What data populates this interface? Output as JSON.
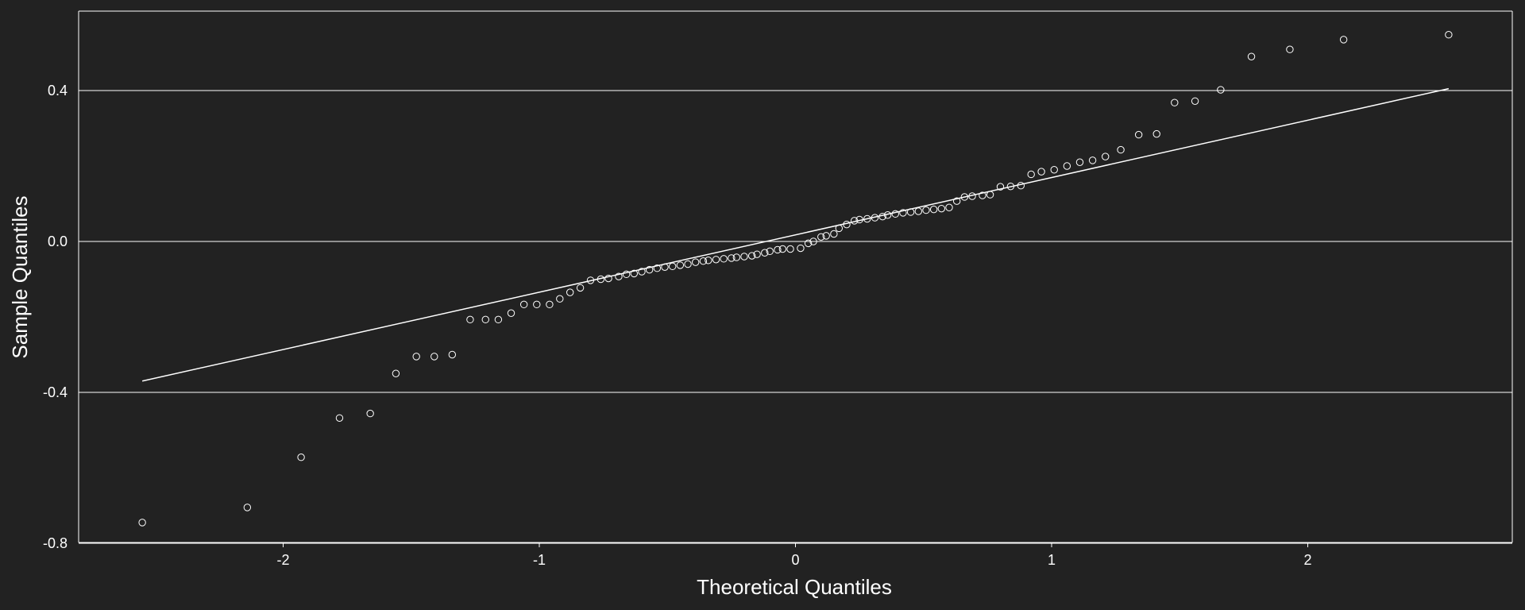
{
  "chart_data": {
    "type": "scatter",
    "xlabel": "Theoretical Quantiles",
    "ylabel": "Sample Quantiles",
    "xlim": [
      -2.8,
      2.8
    ],
    "ylim": [
      -0.8,
      0.61
    ],
    "x_ticks": [
      -2,
      -1,
      0,
      1,
      2
    ],
    "x_tick_labels": [
      "-2",
      "-1",
      "0",
      "1",
      "2"
    ],
    "y_ticks": [
      0.4,
      0.0,
      -0.4,
      -0.8
    ],
    "y_tick_labels": [
      "0.4",
      "0.0",
      "-0.4",
      "-0.8"
    ],
    "grid": "horizontal",
    "colors": {
      "background": "#222222",
      "foreground": "#ffffff"
    },
    "reference_line": {
      "x": [
        -2.55,
        2.55
      ],
      "y": [
        -0.37,
        0.405
      ]
    },
    "series": [
      {
        "points": [
          [
            -2.55,
            -0.745
          ],
          [
            -2.14,
            -0.705
          ],
          [
            -1.93,
            -0.572
          ],
          [
            -1.78,
            -0.468
          ],
          [
            -1.66,
            -0.456
          ],
          [
            -1.56,
            -0.35
          ],
          [
            -1.48,
            -0.305
          ],
          [
            -1.41,
            -0.305
          ],
          [
            -1.34,
            -0.3
          ],
          [
            -1.27,
            -0.207
          ],
          [
            -1.21,
            -0.207
          ],
          [
            -1.16,
            -0.207
          ],
          [
            -1.11,
            -0.19
          ],
          [
            -1.06,
            -0.167
          ],
          [
            -1.01,
            -0.167
          ],
          [
            -0.96,
            -0.167
          ],
          [
            -0.92,
            -0.152
          ],
          [
            -0.88,
            -0.135
          ],
          [
            -0.84,
            -0.123
          ],
          [
            -0.8,
            -0.103
          ],
          [
            -0.76,
            -0.1
          ],
          [
            -0.73,
            -0.098
          ],
          [
            -0.69,
            -0.093
          ],
          [
            -0.66,
            -0.087
          ],
          [
            -0.63,
            -0.085
          ],
          [
            -0.6,
            -0.08
          ],
          [
            -0.57,
            -0.075
          ],
          [
            -0.54,
            -0.071
          ],
          [
            -0.51,
            -0.068
          ],
          [
            -0.48,
            -0.066
          ],
          [
            -0.45,
            -0.063
          ],
          [
            -0.42,
            -0.06
          ],
          [
            -0.39,
            -0.055
          ],
          [
            -0.36,
            -0.052
          ],
          [
            -0.34,
            -0.05
          ],
          [
            -0.31,
            -0.048
          ],
          [
            -0.28,
            -0.046
          ],
          [
            -0.25,
            -0.044
          ],
          [
            -0.23,
            -0.042
          ],
          [
            -0.2,
            -0.04
          ],
          [
            -0.17,
            -0.038
          ],
          [
            -0.15,
            -0.034
          ],
          [
            -0.12,
            -0.03
          ],
          [
            -0.1,
            -0.026
          ],
          [
            -0.07,
            -0.022
          ],
          [
            -0.05,
            -0.02
          ],
          [
            -0.02,
            -0.02
          ],
          [
            0.02,
            -0.018
          ],
          [
            0.05,
            -0.005
          ],
          [
            0.07,
            0.0
          ],
          [
            0.1,
            0.012
          ],
          [
            0.12,
            0.015
          ],
          [
            0.15,
            0.02
          ],
          [
            0.17,
            0.035
          ],
          [
            0.2,
            0.045
          ],
          [
            0.23,
            0.055
          ],
          [
            0.25,
            0.058
          ],
          [
            0.28,
            0.06
          ],
          [
            0.31,
            0.063
          ],
          [
            0.34,
            0.066
          ],
          [
            0.36,
            0.07
          ],
          [
            0.39,
            0.073
          ],
          [
            0.42,
            0.076
          ],
          [
            0.45,
            0.078
          ],
          [
            0.48,
            0.08
          ],
          [
            0.51,
            0.083
          ],
          [
            0.54,
            0.085
          ],
          [
            0.57,
            0.087
          ],
          [
            0.6,
            0.09
          ],
          [
            0.63,
            0.107
          ],
          [
            0.66,
            0.118
          ],
          [
            0.69,
            0.12
          ],
          [
            0.73,
            0.122
          ],
          [
            0.76,
            0.124
          ],
          [
            0.8,
            0.145
          ],
          [
            0.84,
            0.146
          ],
          [
            0.88,
            0.148
          ],
          [
            0.92,
            0.178
          ],
          [
            0.96,
            0.185
          ],
          [
            1.01,
            0.19
          ],
          [
            1.06,
            0.2
          ],
          [
            1.11,
            0.21
          ],
          [
            1.16,
            0.215
          ],
          [
            1.21,
            0.225
          ],
          [
            1.27,
            0.243
          ],
          [
            1.34,
            0.283
          ],
          [
            1.41,
            0.285
          ],
          [
            1.48,
            0.368
          ],
          [
            1.56,
            0.372
          ],
          [
            1.66,
            0.402
          ],
          [
            1.78,
            0.49
          ],
          [
            1.93,
            0.509
          ],
          [
            2.14,
            0.535
          ],
          [
            2.55,
            0.548
          ]
        ]
      }
    ]
  }
}
